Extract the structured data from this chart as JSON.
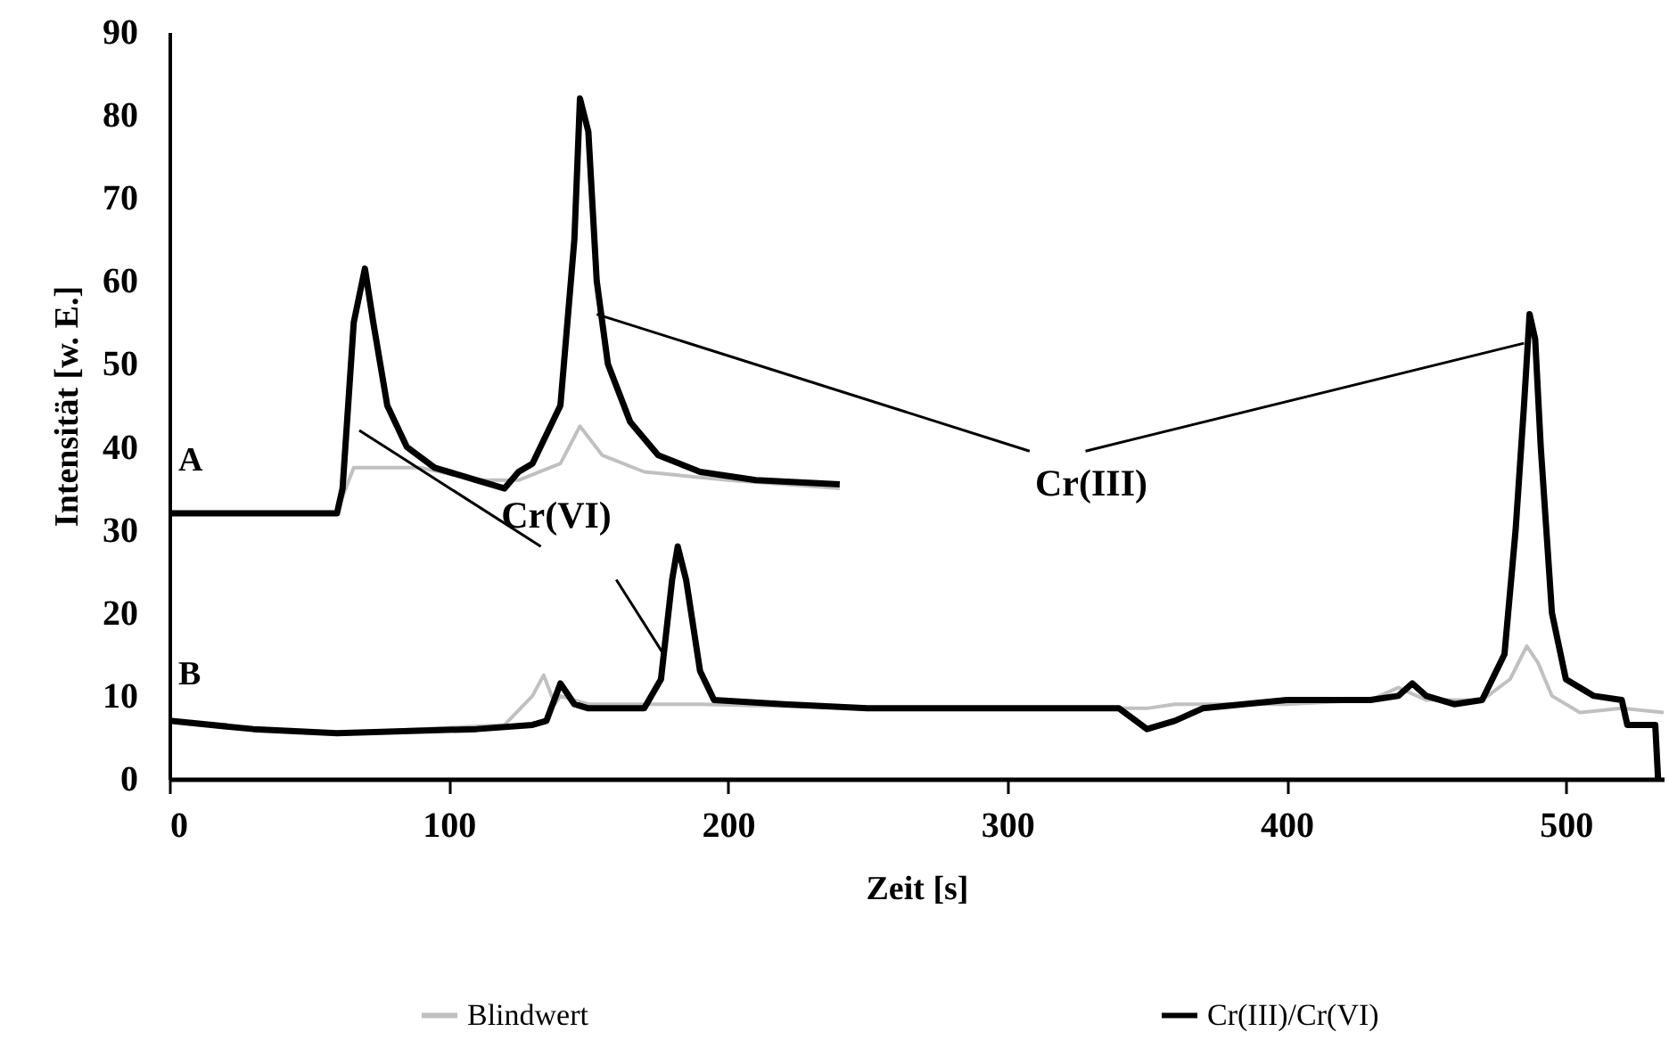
{
  "chart_data": {
    "type": "line",
    "xlabel": "Zeit [s]",
    "ylabel": "Intensität [w. E.]",
    "xlim": [
      0,
      535
    ],
    "ylim": [
      0,
      90
    ],
    "xticks": [
      0,
      100,
      200,
      300,
      400,
      500
    ],
    "yticks": [
      0,
      10,
      20,
      30,
      40,
      50,
      60,
      70,
      80,
      90
    ],
    "grid": false,
    "legend": "bottom",
    "marker": "none",
    "line_style": "solid",
    "series": [
      {
        "color": "#c0c0c0",
        "x": [
          60,
          62,
          66,
          90,
          110,
          125,
          140,
          147,
          155,
          170,
          200,
          240
        ],
        "values": [
          32,
          34,
          37.5,
          37.5,
          36,
          36,
          38,
          42.5,
          39,
          37,
          36,
          35
        ]
      },
      {
        "color": "#000000",
        "x": [
          0,
          30,
          60,
          62,
          64,
          66,
          70,
          73,
          78,
          85,
          95,
          110,
          120,
          125,
          130,
          140,
          145,
          147,
          150,
          153,
          157,
          165,
          175,
          190,
          210,
          240
        ],
        "values": [
          32,
          32,
          32,
          35,
          45,
          55,
          61.5,
          55,
          45,
          40,
          37.5,
          36,
          35,
          37,
          38,
          45,
          65,
          82,
          78,
          60,
          50,
          43,
          39,
          37,
          36,
          35.5
        ]
      },
      {
        "name": "Blindwert",
        "color": "#c0c0c0",
        "x": [
          0,
          30,
          60,
          120,
          130,
          134,
          138,
          140,
          150,
          180,
          190,
          250,
          350,
          360,
          400,
          430,
          440,
          450,
          470,
          480,
          486,
          490,
          495,
          505,
          520,
          535
        ],
        "values": [
          7,
          6,
          5.5,
          6.5,
          10,
          12.5,
          9,
          10,
          9,
          9,
          9,
          8.5,
          8.5,
          9,
          9,
          9.5,
          11,
          9.5,
          9.5,
          12,
          16,
          14,
          10,
          8,
          8.5,
          8
        ]
      },
      {
        "name": "Cr(III)/Cr(VI)",
        "color": "#000000",
        "x": [
          0,
          30,
          60,
          110,
          130,
          135,
          140,
          145,
          150,
          170,
          176,
          180,
          182,
          185,
          190,
          195,
          220,
          250,
          300,
          340,
          350,
          360,
          370,
          400,
          430,
          440,
          445,
          450,
          460,
          470,
          478,
          482,
          485,
          487,
          489,
          491,
          495,
          500,
          510,
          520,
          522,
          532,
          533
        ],
        "values": [
          7,
          6,
          5.5,
          6,
          6.5,
          7,
          11.5,
          9,
          8.5,
          8.5,
          12,
          24,
          28,
          24,
          13,
          9.5,
          9,
          8.5,
          8.5,
          8.5,
          6,
          7,
          8.5,
          9.5,
          9.5,
          10,
          11.5,
          10,
          9,
          9.5,
          15,
          30,
          45,
          56,
          53,
          40,
          20,
          12,
          10,
          9.5,
          6.5,
          6.5,
          0
        ]
      }
    ],
    "annotations": [
      "A",
      "B",
      {
        "text": "Cr(III)",
        "x": 153,
        "y": 56
      },
      {
        "text": "Cr(VI)",
        "x": 177,
        "y": 15
      }
    ]
  }
}
